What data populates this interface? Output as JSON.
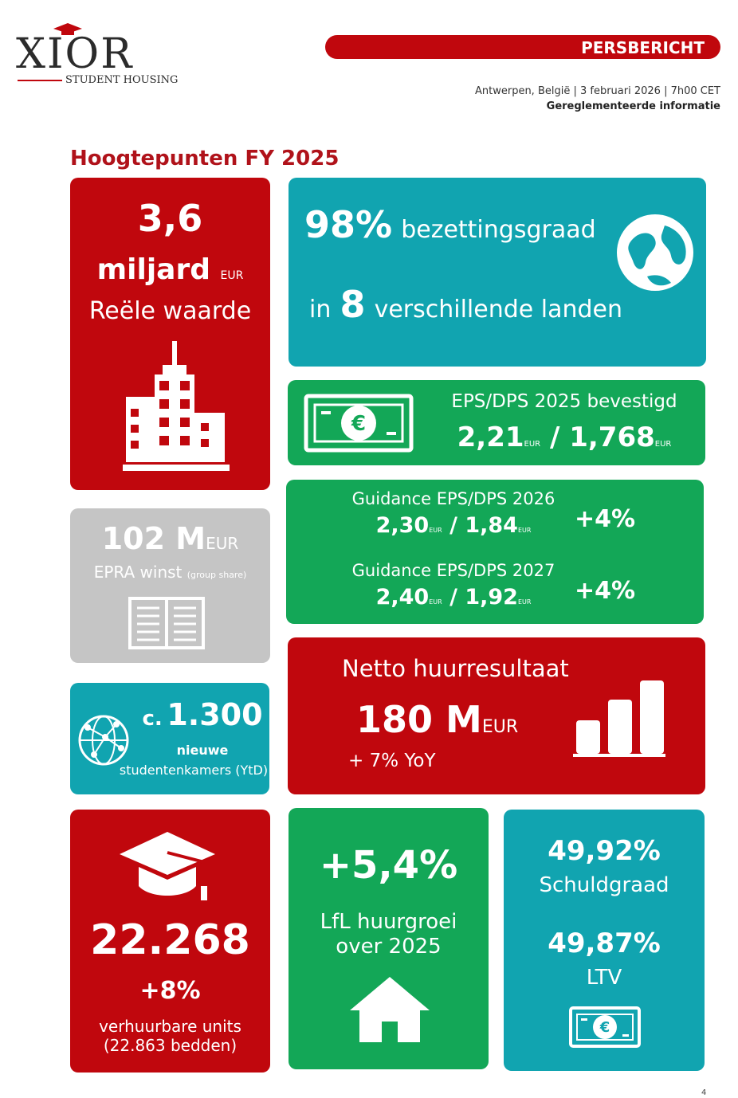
{
  "header": {
    "logo_main": "XIOR",
    "logo_sub": "STUDENT HOUSING",
    "badge": "PERSBERICHT",
    "place_date": "Antwerpen, België | 3 februari 2026 | 7h00 CET",
    "regulated": "Gereglementeerde informatie"
  },
  "heading": "Hoogtepunten FY 2025",
  "fair_value": {
    "number": "3,6",
    "unit": "miljard",
    "currency": "EUR",
    "label": "Reële waarde",
    "icon": "buildings-icon"
  },
  "occupancy": {
    "percent": "98%",
    "label": "bezettingsgraad",
    "prefix": "in",
    "count": "8",
    "suffix": "verschillende landen",
    "icon": "globe-icon"
  },
  "eps_dps": {
    "title": "EPS/DPS 2025 bevestigd",
    "eps": "2,21",
    "dps": "1,768",
    "currency": "EUR",
    "separator": "/",
    "icon": "banknote-icon"
  },
  "guidance": [
    {
      "title": "Guidance EPS/DPS 2026",
      "eps": "2,30",
      "dps": "1,84",
      "currency": "EUR",
      "separator": "/",
      "growth": "+4%"
    },
    {
      "title": "Guidance EPS/DPS 2027",
      "eps": "2,40",
      "dps": "1,92",
      "currency": "EUR",
      "separator": "/",
      "growth": "+4%"
    }
  ],
  "epra": {
    "value": "102 M",
    "currency": "EUR",
    "label": "EPRA winst",
    "label_small": "(group share)",
    "icon": "book-icon"
  },
  "new_rooms": {
    "prefix": "c.",
    "value": "1.300",
    "line1": "nieuwe",
    "line2": "studentenkamers (YtD)",
    "icon": "network-globe-icon"
  },
  "rental_result": {
    "title": "Netto huurresultaat",
    "value": "180 M",
    "currency": "EUR",
    "change": "+ 7% YoY",
    "icon": "bar-chart-icon"
  },
  "units": {
    "value": "22.268",
    "change": "+8%",
    "line1": "verhuurbare units",
    "line2": "(22.863 bedden)",
    "icon": "graduation-cap-icon"
  },
  "lfl": {
    "value": "+5,4%",
    "line1": "LfL huurgroei",
    "line2": "over 2025",
    "icon": "house-icon"
  },
  "debt": {
    "debt_ratio": "49,92%",
    "debt_label": "Schuldgraad",
    "ltv": "49,87%",
    "ltv_label": "LTV",
    "icon": "banknote-icon"
  },
  "colors": {
    "red": "#c0070d",
    "teal": "#11a4b0",
    "green": "#13a757",
    "grey": "#c5c5c5"
  },
  "page_number": "4"
}
